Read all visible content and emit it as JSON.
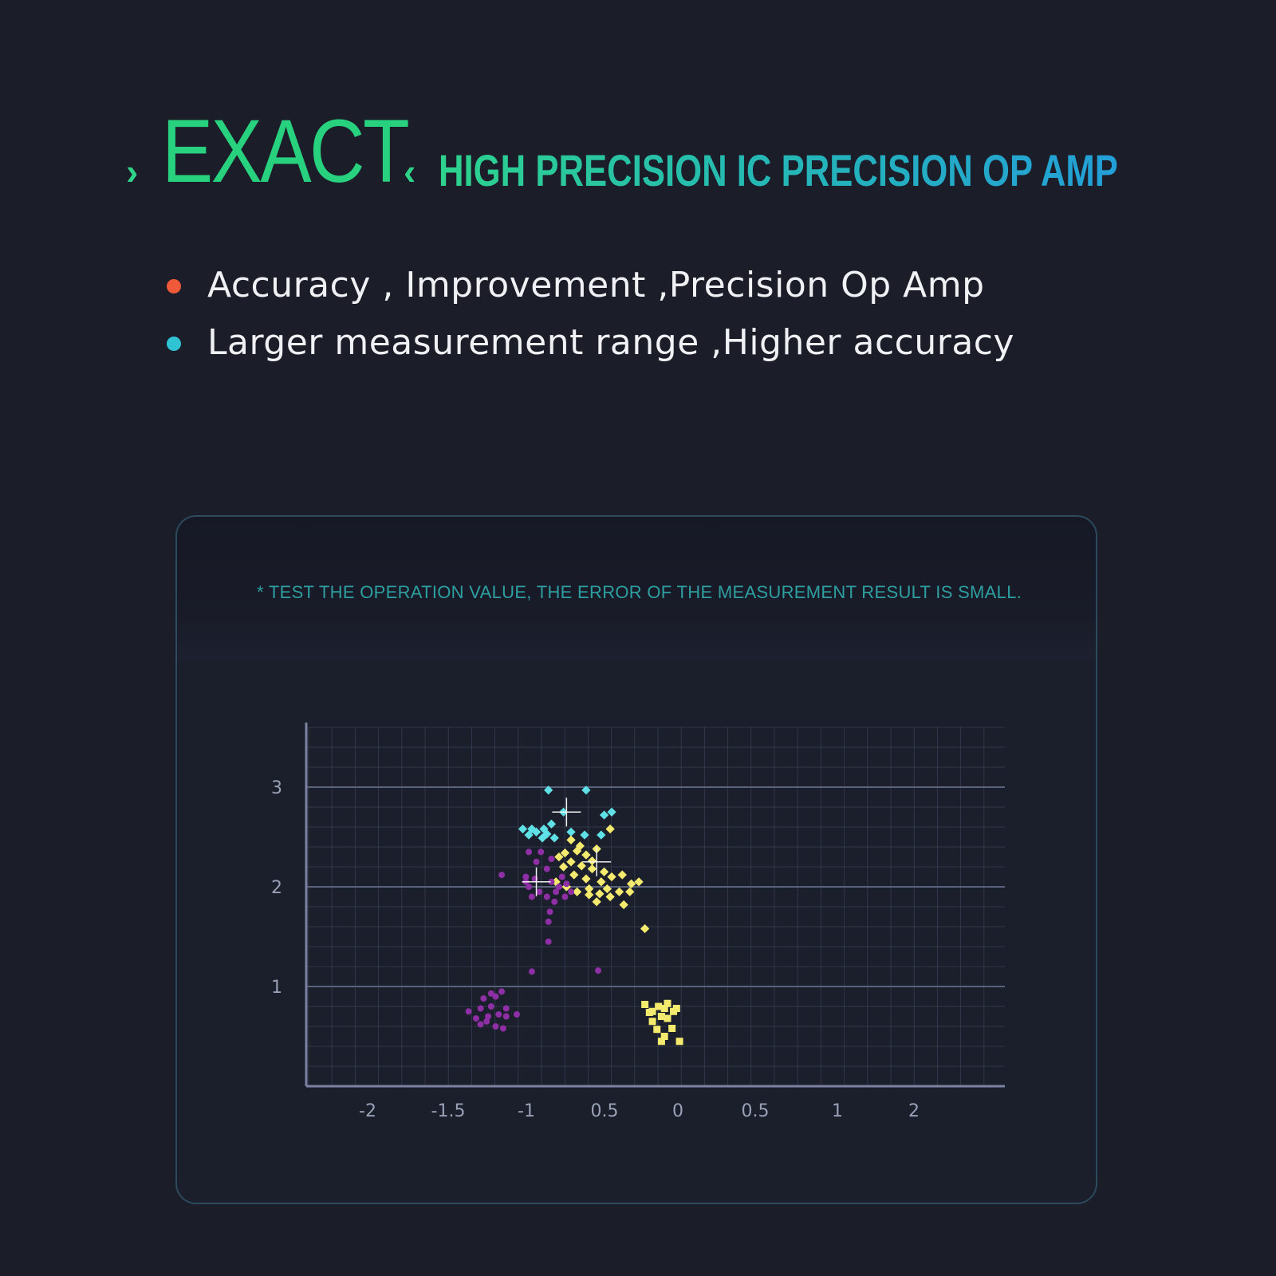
{
  "header": {
    "open_chevron": "›",
    "brand": "EXACT",
    "close_chevron": "‹",
    "subtitle": "HIGH PRECISION IC PRECISION OP AMP"
  },
  "bullets": [
    {
      "text": "Accuracy , Improvement ,Precision Op Amp",
      "color": "#f05a3a"
    },
    {
      "text": "Larger measurement range ,Higher accuracy",
      "color": "#2fc3d3"
    }
  ],
  "chart_note": "* TEST THE OPERATION VALUE, THE ERROR OF THE MEASUREMENT RESULT IS SMALL.",
  "colors": {
    "background": "#1b1d29",
    "grid": "#3a4356",
    "axis": "#7b83a0",
    "cyan": "#5fe0e6",
    "yellow": "#f3ea6e",
    "purple": "#8e2fa5"
  },
  "chart_data": {
    "type": "scatter",
    "x_tick_labels": [
      "-2",
      "-1.5",
      "-1",
      "0.5",
      "0",
      "0.5",
      "1",
      "2"
    ],
    "y_tick_labels": [
      "1",
      "2",
      "3"
    ],
    "grid": true,
    "series": [
      {
        "color": "#5fe0e6",
        "marker": "diamond",
        "points": [
          [
            -0.97,
            2.97
          ],
          [
            -0.72,
            2.97
          ],
          [
            -0.6,
            2.72
          ],
          [
            -0.62,
            2.52
          ],
          [
            -0.55,
            2.75
          ],
          [
            -0.87,
            2.75
          ],
          [
            -1.08,
            2.58
          ],
          [
            -1.1,
            2.52
          ],
          [
            -1.0,
            2.58
          ],
          [
            -0.95,
            2.63
          ],
          [
            -1.14,
            2.58
          ],
          [
            -1.01,
            2.49
          ],
          [
            -0.93,
            2.49
          ],
          [
            -1.05,
            2.55
          ],
          [
            -0.98,
            2.53
          ],
          [
            -0.82,
            2.55
          ],
          [
            -0.73,
            2.52
          ]
        ],
        "markers": [
          [
            -0.85,
            2.75
          ]
        ]
      },
      {
        "color": "#f3ea6e",
        "marker": "diamond",
        "points": [
          [
            -0.56,
            2.58
          ],
          [
            -0.82,
            2.47
          ],
          [
            -0.76,
            2.41
          ],
          [
            -0.65,
            2.38
          ],
          [
            -0.72,
            2.32
          ],
          [
            -0.86,
            2.34
          ],
          [
            -0.9,
            2.3
          ],
          [
            -0.82,
            2.25
          ],
          [
            -0.75,
            2.21
          ],
          [
            -0.68,
            2.18
          ],
          [
            -0.8,
            2.12
          ],
          [
            -0.72,
            2.08
          ],
          [
            -0.62,
            2.05
          ],
          [
            -0.55,
            2.1
          ],
          [
            -0.48,
            2.12
          ],
          [
            -0.42,
            2.03
          ],
          [
            -0.37,
            2.05
          ],
          [
            -0.58,
            1.98
          ],
          [
            -0.63,
            1.93
          ],
          [
            -0.5,
            1.95
          ],
          [
            -0.56,
            1.9
          ],
          [
            -0.7,
            1.92
          ],
          [
            -0.78,
            1.95
          ],
          [
            -0.85,
            2.0
          ],
          [
            -0.92,
            2.05
          ],
          [
            -0.43,
            1.95
          ],
          [
            -0.65,
            1.85
          ],
          [
            -0.47,
            1.82
          ],
          [
            -0.33,
            1.58
          ],
          [
            -0.68,
            2.26
          ],
          [
            -0.6,
            2.15
          ],
          [
            -0.78,
            2.36
          ],
          [
            -0.87,
            2.2
          ],
          [
            -0.7,
            1.98
          ]
        ],
        "markers": [
          [
            -0.65,
            2.25
          ]
        ]
      },
      {
        "color": "#8e2fa5",
        "marker": "circle",
        "points": [
          [
            -1.1,
            2.35
          ],
          [
            -1.02,
            2.35
          ],
          [
            -0.95,
            2.28
          ],
          [
            -1.05,
            2.25
          ],
          [
            -0.98,
            2.18
          ],
          [
            -1.28,
            2.12
          ],
          [
            -1.12,
            2.1
          ],
          [
            -1.06,
            2.08
          ],
          [
            -0.95,
            2.05
          ],
          [
            -0.88,
            2.1
          ],
          [
            -1.1,
            2.0
          ],
          [
            -1.03,
            1.95
          ],
          [
            -0.98,
            1.9
          ],
          [
            -0.92,
            1.95
          ],
          [
            -0.86,
            1.9
          ],
          [
            -0.82,
            1.95
          ],
          [
            -1.08,
            1.9
          ],
          [
            -0.93,
            1.85
          ],
          [
            -0.96,
            1.75
          ],
          [
            -0.97,
            1.65
          ],
          [
            -0.97,
            1.45
          ],
          [
            -1.08,
            1.15
          ],
          [
            -0.64,
            1.16
          ],
          [
            -1.12,
            2.05
          ],
          [
            -0.9,
            2.0
          ],
          [
            -0.85,
            2.03
          ]
        ],
        "markers": [
          [
            -1.05,
            2.05
          ]
        ]
      },
      {
        "color": "#8e2fa5",
        "marker": "circle",
        "points": [
          [
            -1.5,
            0.75
          ],
          [
            -1.42,
            0.78
          ],
          [
            -1.45,
            0.68
          ],
          [
            -1.38,
            0.65
          ],
          [
            -1.4,
            0.88
          ],
          [
            -1.35,
            0.8
          ],
          [
            -1.3,
            0.72
          ],
          [
            -1.25,
            0.7
          ],
          [
            -1.32,
            0.6
          ],
          [
            -1.27,
            0.58
          ],
          [
            -1.35,
            0.93
          ],
          [
            -1.28,
            0.95
          ],
          [
            -1.32,
            0.9
          ],
          [
            -1.18,
            0.72
          ],
          [
            -1.25,
            0.78
          ],
          [
            -1.42,
            0.62
          ],
          [
            -1.37,
            0.7
          ]
        ],
        "markers": []
      },
      {
        "color": "#f3ea6e",
        "marker": "square",
        "points": [
          [
            -0.33,
            0.82
          ],
          [
            -0.28,
            0.75
          ],
          [
            -0.24,
            0.8
          ],
          [
            -0.18,
            0.83
          ],
          [
            -0.12,
            0.78
          ],
          [
            -0.22,
            0.7
          ],
          [
            -0.28,
            0.65
          ],
          [
            -0.18,
            0.68
          ],
          [
            -0.25,
            0.57
          ],
          [
            -0.2,
            0.5
          ],
          [
            -0.15,
            0.58
          ],
          [
            -0.22,
            0.45
          ],
          [
            -0.1,
            0.45
          ],
          [
            -0.3,
            0.74
          ],
          [
            -0.14,
            0.75
          ],
          [
            -0.2,
            0.78
          ]
        ],
        "markers": []
      }
    ]
  }
}
